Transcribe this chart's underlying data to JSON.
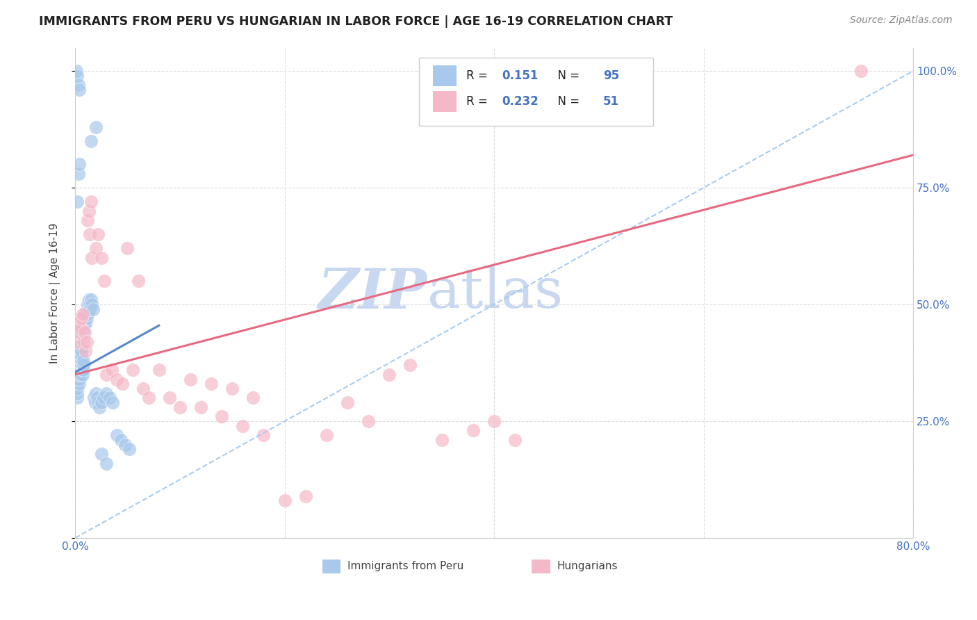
{
  "title": "IMMIGRANTS FROM PERU VS HUNGARIAN IN LABOR FORCE | AGE 16-19 CORRELATION CHART",
  "source": "Source: ZipAtlas.com",
  "ylabel": "In Labor Force | Age 16-19",
  "xlim": [
    0.0,
    0.8
  ],
  "ylim": [
    0.0,
    1.05
  ],
  "legend_labels": [
    "Immigrants from Peru",
    "Hungarians"
  ],
  "r_peru": 0.151,
  "n_peru": 95,
  "r_hungarian": 0.232,
  "n_hungarian": 51,
  "blue_color": "#A8C8EC",
  "pink_color": "#F5B8C8",
  "blue_line_color": "#5588CC",
  "pink_line_color": "#E86880",
  "dashed_line_color": "#AACCEE",
  "background_color": "#FFFFFF",
  "grid_color": "#DDDDDD",
  "peru_x": [
    0.001,
    0.001,
    0.001,
    0.001,
    0.001,
    0.001,
    0.001,
    0.001,
    0.001,
    0.002,
    0.002,
    0.002,
    0.002,
    0.002,
    0.002,
    0.002,
    0.002,
    0.002,
    0.003,
    0.003,
    0.003,
    0.003,
    0.003,
    0.003,
    0.003,
    0.003,
    0.004,
    0.004,
    0.004,
    0.004,
    0.004,
    0.004,
    0.004,
    0.005,
    0.005,
    0.005,
    0.005,
    0.005,
    0.005,
    0.006,
    0.006,
    0.006,
    0.006,
    0.006,
    0.007,
    0.007,
    0.007,
    0.007,
    0.008,
    0.008,
    0.008,
    0.008,
    0.009,
    0.009,
    0.009,
    0.01,
    0.01,
    0.01,
    0.011,
    0.011,
    0.012,
    0.012,
    0.013,
    0.013,
    0.014,
    0.014,
    0.015,
    0.016,
    0.017,
    0.018,
    0.019,
    0.02,
    0.021,
    0.022,
    0.023,
    0.025,
    0.027,
    0.03,
    0.033,
    0.036,
    0.04,
    0.044,
    0.048,
    0.052,
    0.002,
    0.003,
    0.004,
    0.015,
    0.02,
    0.025,
    0.03,
    0.001,
    0.002,
    0.003,
    0.004
  ],
  "peru_y": [
    0.34,
    0.35,
    0.36,
    0.37,
    0.38,
    0.39,
    0.4,
    0.41,
    0.32,
    0.33,
    0.34,
    0.35,
    0.36,
    0.37,
    0.38,
    0.3,
    0.31,
    0.32,
    0.34,
    0.35,
    0.36,
    0.37,
    0.38,
    0.39,
    0.4,
    0.41,
    0.33,
    0.34,
    0.35,
    0.36,
    0.37,
    0.38,
    0.39,
    0.35,
    0.36,
    0.37,
    0.38,
    0.39,
    0.4,
    0.36,
    0.37,
    0.38,
    0.39,
    0.4,
    0.35,
    0.36,
    0.37,
    0.44,
    0.36,
    0.37,
    0.38,
    0.45,
    0.46,
    0.47,
    0.48,
    0.47,
    0.48,
    0.46,
    0.47,
    0.49,
    0.48,
    0.5,
    0.49,
    0.51,
    0.5,
    0.49,
    0.51,
    0.5,
    0.49,
    0.3,
    0.29,
    0.31,
    0.3,
    0.29,
    0.28,
    0.29,
    0.3,
    0.31,
    0.3,
    0.29,
    0.22,
    0.21,
    0.2,
    0.19,
    0.72,
    0.78,
    0.8,
    0.85,
    0.88,
    0.18,
    0.16,
    1.0,
    0.99,
    0.97,
    0.96
  ],
  "hung_x": [
    0.002,
    0.003,
    0.004,
    0.005,
    0.006,
    0.007,
    0.008,
    0.009,
    0.01,
    0.011,
    0.012,
    0.013,
    0.014,
    0.015,
    0.016,
    0.02,
    0.022,
    0.025,
    0.028,
    0.03,
    0.035,
    0.04,
    0.045,
    0.05,
    0.055,
    0.06,
    0.065,
    0.07,
    0.08,
    0.09,
    0.1,
    0.11,
    0.12,
    0.13,
    0.14,
    0.15,
    0.16,
    0.17,
    0.18,
    0.2,
    0.22,
    0.24,
    0.26,
    0.28,
    0.3,
    0.32,
    0.35,
    0.38,
    0.4,
    0.42,
    0.75
  ],
  "hung_y": [
    0.42,
    0.44,
    0.46,
    0.45,
    0.47,
    0.48,
    0.42,
    0.44,
    0.4,
    0.42,
    0.68,
    0.7,
    0.65,
    0.72,
    0.6,
    0.62,
    0.65,
    0.6,
    0.55,
    0.35,
    0.36,
    0.34,
    0.33,
    0.62,
    0.36,
    0.55,
    0.32,
    0.3,
    0.36,
    0.3,
    0.28,
    0.34,
    0.28,
    0.33,
    0.26,
    0.32,
    0.24,
    0.3,
    0.22,
    0.08,
    0.09,
    0.22,
    0.29,
    0.25,
    0.35,
    0.37,
    0.21,
    0.23,
    0.25,
    0.21,
    1.0
  ],
  "blue_trendline_x": [
    0.0,
    0.08
  ],
  "blue_trendline_y": [
    0.355,
    0.455
  ],
  "pink_trendline_x": [
    0.0,
    0.8
  ],
  "pink_trendline_y": [
    0.35,
    0.82
  ],
  "dashed_line_x": [
    0.0,
    0.8
  ],
  "dashed_line_y": [
    0.0,
    1.0
  ]
}
